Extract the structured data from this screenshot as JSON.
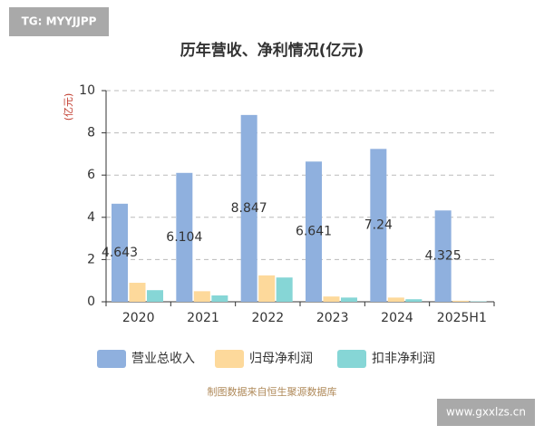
{
  "chart_data": {
    "type": "bar",
    "title": "历年营收、净利情况(亿元)",
    "ylabel": "(亿元)",
    "categories": [
      "2020",
      "2021",
      "2022",
      "2023",
      "2024",
      "2025H1"
    ],
    "series": [
      {
        "name": "营业总收入",
        "color": "#8fb0de",
        "values": [
          4.643,
          6.104,
          8.847,
          6.641,
          7.24,
          4.325
        ]
      },
      {
        "name": "归母净利润",
        "color": "#fdd99b",
        "values": [
          0.9,
          0.5,
          1.25,
          0.25,
          0.2,
          0.05
        ]
      },
      {
        "name": "扣非净利润",
        "color": "#86d6d6",
        "values": [
          0.55,
          0.3,
          1.15,
          0.2,
          0.12,
          0.02
        ]
      }
    ],
    "value_labels_series": 0,
    "ylim": [
      0,
      10
    ],
    "yticks": [
      0,
      2,
      4,
      6,
      8,
      10
    ],
    "grid": true,
    "source_note": "制图数据来自恒生聚源数据库"
  },
  "watermarks": [
    "TG: MYYJJPP",
    "www.gxxlzs.cn"
  ]
}
